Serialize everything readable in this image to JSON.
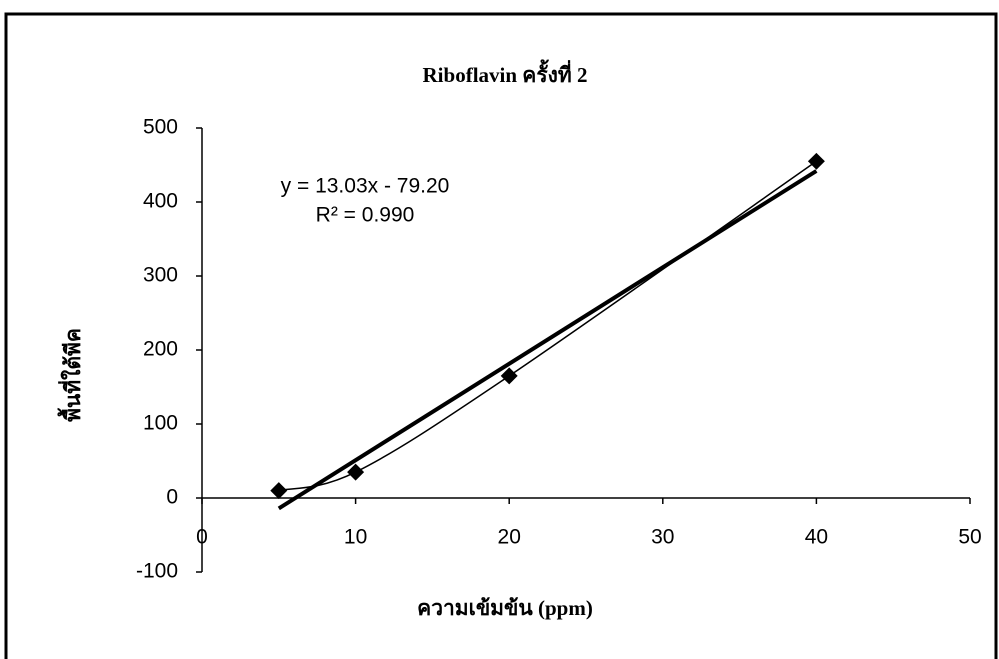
{
  "chart_data": {
    "type": "scatter",
    "title": "Riboflavin ครั้งที่ 2",
    "x_label": "ความเข้มข้น (ppm)",
    "y_label": "พื้นที่ใต้พีค",
    "x": [
      5,
      10,
      20,
      40
    ],
    "series": [
      {
        "color": "#000000",
        "values": [
          10,
          35,
          165,
          455
        ]
      }
    ],
    "trendline": {
      "slope": 13.03,
      "intercept": -79.2,
      "equation": "y = 13.03x - 79.20",
      "r2": "R² = 0.990"
    },
    "xlim": [
      0,
      50
    ],
    "xticks": [
      0,
      10,
      20,
      30,
      40,
      50
    ],
    "ylim": [
      -100,
      500
    ],
    "yticks": [
      -100,
      0,
      100,
      200,
      300,
      400,
      500
    ]
  }
}
